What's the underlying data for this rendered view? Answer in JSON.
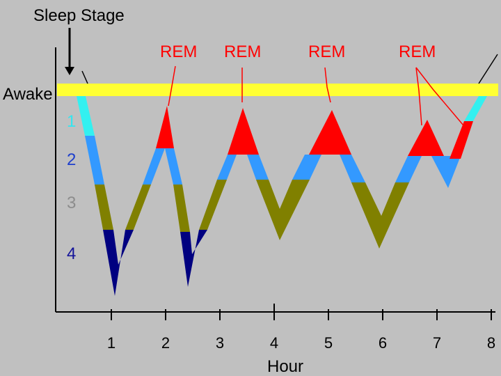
{
  "chart_data": {
    "type": "diagram",
    "title": "Sleep Stage",
    "xlabel": "Hour",
    "x_ticks": [
      "1",
      "2",
      "3",
      "4",
      "5",
      "6",
      "7",
      "8"
    ],
    "awake_label": "Awake",
    "stage_labels": [
      {
        "label": "1",
        "color": "#33e6f0"
      },
      {
        "label": "2",
        "color": "#1e3fcc"
      },
      {
        "label": "3",
        "color": "#8c8c8c"
      },
      {
        "label": "4",
        "color": "#14149a"
      }
    ],
    "rem_labels": [
      "REM",
      "REM",
      "REM",
      "REM"
    ],
    "colors": {
      "background": "#c0c0c0",
      "awake_band": "#ffff33",
      "stage1": "#33f0f0",
      "stage2": "#3399ff",
      "stage3": "#808000",
      "stage4": "#000080",
      "rem": "#ff0000",
      "axis": "#000000"
    }
  }
}
